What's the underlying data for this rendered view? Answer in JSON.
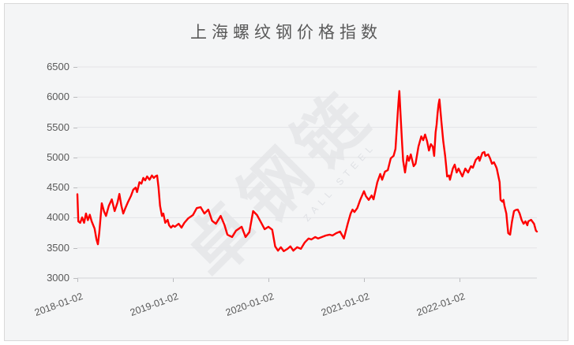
{
  "title": "上海螺纹钢价格指数",
  "watermark": {
    "main": "卓钢链",
    "sub": "ZALL STEEL"
  },
  "colors": {
    "line": "#fe0000",
    "chart_background": "#f4f5f6",
    "card_border": "#d9d9d9",
    "gridline": "#e3e4e7",
    "axis_line": "#d2d3d6",
    "tick": "#b9babd",
    "label_text": "#595959",
    "watermark_text": "rgba(90,100,120,0.085)"
  },
  "chart_data": {
    "type": "line",
    "title": "上海螺纹钢价格指数",
    "series_name": "上海螺纹钢价格指数",
    "legend": "none",
    "grid": "horizontal",
    "ylim": [
      3000,
      6500
    ],
    "y_ticks": [
      3000,
      3500,
      4000,
      4500,
      5000,
      5500,
      6000,
      6500
    ],
    "x_tick_labels": [
      "2018-01-02",
      "2019-01-02",
      "2020-01-02",
      "2021-01-02",
      "2022-01-02"
    ],
    "x_tick_positions_years": [
      0,
      1,
      2,
      3,
      4
    ],
    "x_axis_span_years": 4.81,
    "x_unit": "years since 2018-01-02",
    "points": [
      [
        0.0,
        4390
      ],
      [
        0.01,
        3940
      ],
      [
        0.03,
        3915
      ],
      [
        0.05,
        4005
      ],
      [
        0.07,
        3915
      ],
      [
        0.09,
        4070
      ],
      [
        0.11,
        3960
      ],
      [
        0.13,
        4050
      ],
      [
        0.15,
        3940
      ],
      [
        0.18,
        3820
      ],
      [
        0.2,
        3640
      ],
      [
        0.215,
        3560
      ],
      [
        0.23,
        3760
      ],
      [
        0.255,
        4240
      ],
      [
        0.28,
        4100
      ],
      [
        0.3,
        4030
      ],
      [
        0.33,
        4200
      ],
      [
        0.36,
        4305
      ],
      [
        0.39,
        4110
      ],
      [
        0.42,
        4250
      ],
      [
        0.44,
        4395
      ],
      [
        0.46,
        4200
      ],
      [
        0.48,
        4070
      ],
      [
        0.5,
        4150
      ],
      [
        0.53,
        4260
      ],
      [
        0.56,
        4360
      ],
      [
        0.585,
        4465
      ],
      [
        0.61,
        4500
      ],
      [
        0.625,
        4425
      ],
      [
        0.65,
        4590
      ],
      [
        0.67,
        4565
      ],
      [
        0.69,
        4660
      ],
      [
        0.71,
        4620
      ],
      [
        0.73,
        4685
      ],
      [
        0.755,
        4630
      ],
      [
        0.78,
        4700
      ],
      [
        0.8,
        4660
      ],
      [
        0.82,
        4690
      ],
      [
        0.835,
        4700
      ],
      [
        0.85,
        4500
      ],
      [
        0.865,
        4200
      ],
      [
        0.885,
        4030
      ],
      [
        0.9,
        4070
      ],
      [
        0.92,
        3915
      ],
      [
        0.945,
        3965
      ],
      [
        0.96,
        3875
      ],
      [
        0.98,
        3836
      ],
      [
        1.0,
        3870
      ],
      [
        1.02,
        3850
      ],
      [
        1.06,
        3900
      ],
      [
        1.09,
        3836
      ],
      [
        1.12,
        3915
      ],
      [
        1.16,
        3990
      ],
      [
        1.21,
        4045
      ],
      [
        1.25,
        4160
      ],
      [
        1.29,
        4175
      ],
      [
        1.33,
        4070
      ],
      [
        1.37,
        4135
      ],
      [
        1.41,
        3950
      ],
      [
        1.45,
        3900
      ],
      [
        1.5,
        4030
      ],
      [
        1.54,
        3880
      ],
      [
        1.57,
        3720
      ],
      [
        1.62,
        3680
      ],
      [
        1.66,
        3785
      ],
      [
        1.72,
        3850
      ],
      [
        1.76,
        3680
      ],
      [
        1.8,
        3760
      ],
      [
        1.84,
        4110
      ],
      [
        1.88,
        4045
      ],
      [
        1.93,
        3900
      ],
      [
        1.96,
        3810
      ],
      [
        2.0,
        3850
      ],
      [
        2.04,
        3800
      ],
      [
        2.07,
        3525
      ],
      [
        2.1,
        3455
      ],
      [
        2.13,
        3510
      ],
      [
        2.16,
        3445
      ],
      [
        2.2,
        3485
      ],
      [
        2.23,
        3525
      ],
      [
        2.26,
        3455
      ],
      [
        2.3,
        3510
      ],
      [
        2.34,
        3485
      ],
      [
        2.38,
        3590
      ],
      [
        2.42,
        3655
      ],
      [
        2.45,
        3640
      ],
      [
        2.49,
        3680
      ],
      [
        2.52,
        3655
      ],
      [
        2.56,
        3680
      ],
      [
        2.6,
        3705
      ],
      [
        2.64,
        3720
      ],
      [
        2.67,
        3705
      ],
      [
        2.71,
        3745
      ],
      [
        2.75,
        3770
      ],
      [
        2.79,
        3655
      ],
      [
        2.83,
        3900
      ],
      [
        2.86,
        4070
      ],
      [
        2.88,
        4135
      ],
      [
        2.9,
        4095
      ],
      [
        2.93,
        4160
      ],
      [
        2.96,
        4295
      ],
      [
        3.0,
        4440
      ],
      [
        3.02,
        4360
      ],
      [
        3.05,
        4295
      ],
      [
        3.08,
        4370
      ],
      [
        3.1,
        4305
      ],
      [
        3.14,
        4590
      ],
      [
        3.17,
        4725
      ],
      [
        3.19,
        4630
      ],
      [
        3.22,
        4765
      ],
      [
        3.25,
        4790
      ],
      [
        3.28,
        4985
      ],
      [
        3.31,
        5025
      ],
      [
        3.33,
        5140
      ],
      [
        3.35,
        5640
      ],
      [
        3.36,
        5900
      ],
      [
        3.37,
        6100
      ],
      [
        3.385,
        5640
      ],
      [
        3.4,
        5205
      ],
      [
        3.41,
        4945
      ],
      [
        3.43,
        4750
      ],
      [
        3.455,
        5025
      ],
      [
        3.47,
        4945
      ],
      [
        3.49,
        5050
      ],
      [
        3.52,
        4855
      ],
      [
        3.54,
        4895
      ],
      [
        3.57,
        5180
      ],
      [
        3.6,
        5350
      ],
      [
        3.62,
        5285
      ],
      [
        3.64,
        5380
      ],
      [
        3.66,
        5270
      ],
      [
        3.68,
        5115
      ],
      [
        3.7,
        5220
      ],
      [
        3.72,
        5180
      ],
      [
        3.735,
        5025
      ],
      [
        3.75,
        5415
      ],
      [
        3.76,
        5545
      ],
      [
        3.77,
        5730
      ],
      [
        3.78,
        5875
      ],
      [
        3.79,
        5960
      ],
      [
        3.81,
        5600
      ],
      [
        3.83,
        5270
      ],
      [
        3.85,
        5025
      ],
      [
        3.86,
        4855
      ],
      [
        3.87,
        4685
      ],
      [
        3.89,
        4700
      ],
      [
        3.9,
        4630
      ],
      [
        3.93,
        4815
      ],
      [
        3.95,
        4880
      ],
      [
        3.97,
        4750
      ],
      [
        3.99,
        4815
      ],
      [
        4.01,
        4750
      ],
      [
        4.03,
        4685
      ],
      [
        4.06,
        4815
      ],
      [
        4.09,
        4750
      ],
      [
        4.12,
        4855
      ],
      [
        4.14,
        4830
      ],
      [
        4.17,
        4960
      ],
      [
        4.2,
        5010
      ],
      [
        4.21,
        4945
      ],
      [
        4.24,
        5075
      ],
      [
        4.26,
        5090
      ],
      [
        4.27,
        5025
      ],
      [
        4.3,
        5050
      ],
      [
        4.32,
        4985
      ],
      [
        4.34,
        4895
      ],
      [
        4.36,
        4920
      ],
      [
        4.38,
        4855
      ],
      [
        4.39,
        4815
      ],
      [
        4.42,
        4590
      ],
      [
        4.43,
        4295
      ],
      [
        4.45,
        4265
      ],
      [
        4.46,
        4295
      ],
      [
        4.47,
        4200
      ],
      [
        4.49,
        4070
      ],
      [
        4.5,
        3900
      ],
      [
        4.51,
        3745
      ],
      [
        4.53,
        3720
      ],
      [
        4.55,
        3940
      ],
      [
        4.57,
        4110
      ],
      [
        4.59,
        4130
      ],
      [
        4.61,
        4135
      ],
      [
        4.63,
        4070
      ],
      [
        4.65,
        3965
      ],
      [
        4.67,
        3900
      ],
      [
        4.69,
        3940
      ],
      [
        4.71,
        3875
      ],
      [
        4.72,
        3940
      ],
      [
        4.75,
        3965
      ],
      [
        4.78,
        3900
      ],
      [
        4.8,
        3785
      ],
      [
        4.81,
        3770
      ]
    ]
  }
}
